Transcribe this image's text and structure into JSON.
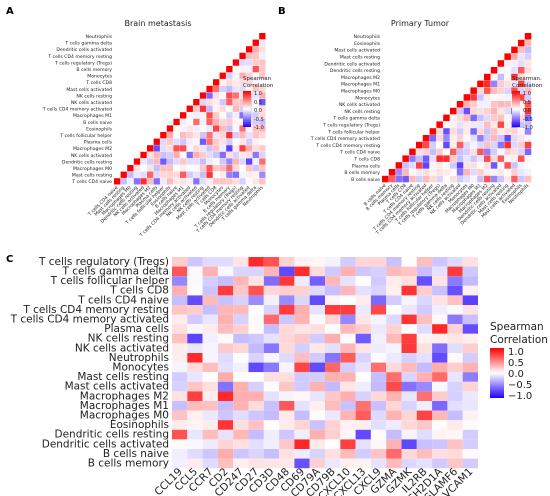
{
  "panels": {
    "A": {
      "letter": "A",
      "title": "Brain metastasis",
      "legend_title_lines": [
        "Spearman",
        "Correlation"
      ],
      "legend_ticks": [
        "1.0",
        "0.5",
        "0.0",
        "-0.5",
        "-1.0"
      ]
    },
    "B": {
      "letter": "B",
      "title": "Primary Tumor",
      "legend_title_lines": [
        "Spearman.",
        "Correlation"
      ],
      "legend_ticks": [
        "1.0",
        "0.5",
        "0.0",
        "-0.5",
        "-1.0"
      ]
    },
    "C": {
      "letter": "C",
      "legend_title_lines": [
        "Spearman",
        "Correlation"
      ],
      "legend_ticks": [
        "1.0",
        "0.5",
        "0.0",
        "−0.5",
        "−1.0"
      ]
    }
  },
  "chart_data": [
    {
      "type": "heatmap",
      "title": "Brain metastasis",
      "shape": "lower-triangle correlation matrix",
      "rows": [
        "Neutrophils",
        "T cells gamma delta",
        "Dendritic cells activated",
        "T cells CD4 memory resting",
        "T cells regulatory (Tregs)",
        "B cells memory",
        "Monocytes",
        "T cells CD8",
        "Mast cells activated",
        "NK cells resting",
        "NK cells activated",
        "T cells CD4 memory activated",
        "Macrophages M1",
        "B cells naive",
        "Eosinophils",
        "T cells follicular helper",
        "Plasma cells",
        "Macrophages M2",
        "NK cells activated",
        "Dendritic cells resting",
        "Macrophages M0",
        "Mast cells resting",
        "T cells CD4 naive"
      ],
      "columns": [
        "T cells CD4 naive",
        "Mast cells resting",
        "Macrophages M0",
        "Dendritic cells resting",
        "NK cells activated",
        "Macrophages M2",
        "Plasma cells",
        "T cells follicular helper",
        "Eosinophils",
        "B cells naive",
        "Macrophages M1",
        "T cells CD4 memory activated",
        "NK cells activated",
        "NK cells resting",
        "Mast cells activated",
        "T cells CD8",
        "Monocytes",
        "B cells memory",
        "T cells regulatory (Tregs)",
        "T cells CD4 memory resting",
        "Dendritic cells activated",
        "T cells gamma delta",
        "Neutrophils"
      ],
      "legend_range": [
        -1,
        1
      ]
    },
    {
      "type": "heatmap",
      "title": "Primary Tumor",
      "shape": "lower-triangle correlation matrix",
      "rows": [
        "Neutrophils",
        "Eosinophils",
        "Mast cells activated",
        "Mast cells resting",
        "Dendritic cells activated",
        "Dendritic cells resting",
        "Macrophages M2",
        "Macrophages M1",
        "Macrophages M0",
        "Monocytes",
        "NK cells activated",
        "NK cells resting",
        "T cells gamma delta",
        "T cells regulatory (Tregs)",
        "T cells follicular helper",
        "T cells CD4 memory activated",
        "T cells CD4 memory resting",
        "T cells CD4 naive",
        "T cells CD8",
        "Plasma cells",
        "B cells memory",
        "B cells naive"
      ],
      "columns": [
        "B cells naive",
        "B cells memory",
        "Plasma cells",
        "T cells CD8",
        "T cells CD4 naive",
        "T cells CD4 memory resting",
        "T cells CD4 memory activated",
        "T cells follicular helper",
        "T cells regulatory (Tregs)",
        "T cells gamma delta",
        "NK cells resting",
        "NK cells activated",
        "Monocytes",
        "Macrophages M0",
        "Macrophages M1",
        "Macrophages M2",
        "Dendritic cells resting",
        "Dendritic cells activated",
        "Mast cells resting",
        "Mast cells activated",
        "Eosinophils",
        "Neutrophils"
      ],
      "legend_range": [
        -1,
        1
      ]
    },
    {
      "type": "heatmap",
      "title": "",
      "rows": [
        "T cells regulatory (Tregs)",
        "T cells gamma delta",
        "T cells follicular helper",
        "T cells CD8",
        "T cells CD4 naive",
        "T cells CD4 memory resting",
        "T cells CD4 memory activated",
        "Plasma cells",
        "NK cells resting",
        "NK cells activated",
        "Neutrophils",
        "Monocytes",
        "Mast cells resting",
        "Mast cells activated",
        "Macrophages M2",
        "Macrophages M1",
        "Macrophages M0",
        "Eosinophils",
        "Dendritic cells resting",
        "Dendritic cells activated",
        "B cells naive",
        "B cells memory"
      ],
      "columns": [
        "CCL19",
        "CCL5",
        "CCR7",
        "CD2",
        "CD247",
        "CD27",
        "CD3D",
        "CD48",
        "CD69",
        "CD79A",
        "CD79B",
        "CXCL10",
        "CXCL13",
        "CXCL9",
        "GZMA",
        "GZMK",
        "IL2RB",
        "SH2D1A",
        "SLAMF6",
        "VCAM1"
      ],
      "legend_title": "Spearman Correlation",
      "legend_range": [
        -1,
        1
      ]
    }
  ]
}
